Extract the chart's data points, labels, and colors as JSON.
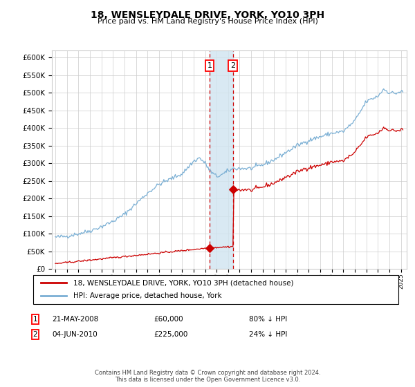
{
  "title": "18, WENSLEYDALE DRIVE, YORK, YO10 3PH",
  "subtitle": "Price paid vs. HM Land Registry's House Price Index (HPI)",
  "ylim": [
    0,
    620000
  ],
  "yticks": [
    0,
    50000,
    100000,
    150000,
    200000,
    250000,
    300000,
    350000,
    400000,
    450000,
    500000,
    550000,
    600000
  ],
  "xlim_start": 1994.7,
  "xlim_end": 2025.5,
  "transaction1_date": 2008.385,
  "transaction1_price": 60000,
  "transaction2_date": 2010.42,
  "transaction2_price": 225000,
  "hpi_color": "#7aafd4",
  "price_color": "#cc0000",
  "shade_color": "#d0e4f0",
  "dashed_color": "#cc0000",
  "grid_color": "#cccccc",
  "background_color": "#ffffff",
  "legend_label_price": "18, WENSLEYDALE DRIVE, YORK, YO10 3PH (detached house)",
  "legend_label_hpi": "HPI: Average price, detached house, York",
  "note1_date": "21-MAY-2008",
  "note1_price": "£60,000",
  "note1_hpi": "80% ↓ HPI",
  "note2_date": "04-JUN-2010",
  "note2_price": "£225,000",
  "note2_hpi": "24% ↓ HPI",
  "footer": "Contains HM Land Registry data © Crown copyright and database right 2024.\nThis data is licensed under the Open Government Licence v3.0."
}
